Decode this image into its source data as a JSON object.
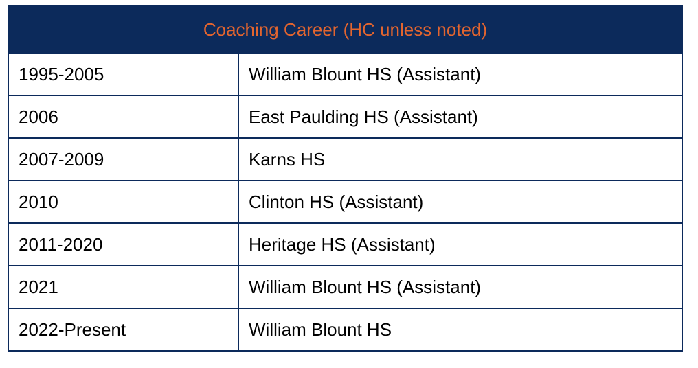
{
  "table": {
    "title": "Coaching Career (HC unless noted)",
    "colors": {
      "header_bg": "#0c2a5b",
      "header_text": "#e3652f",
      "border": "#0c2a5b"
    },
    "rows": [
      {
        "years": "1995-2005",
        "school": "William Blount HS (Assistant)"
      },
      {
        "years": "2006",
        "school": "East Paulding HS (Assistant)"
      },
      {
        "years": "2007-2009",
        "school": "Karns HS"
      },
      {
        "years": "2010",
        "school": "Clinton HS (Assistant)"
      },
      {
        "years": "2011-2020",
        "school": "Heritage HS (Assistant)"
      },
      {
        "years": "2021",
        "school": "William Blount HS (Assistant)"
      },
      {
        "years": "2022-Present",
        "school": "William Blount HS"
      }
    ]
  }
}
